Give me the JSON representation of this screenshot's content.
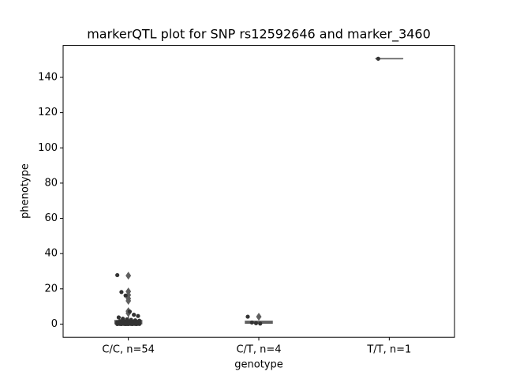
{
  "chart_data": {
    "type": "box",
    "title": "markerQTL plot for SNP rs12592646 and marker_3460",
    "x_label": "genotype",
    "y_label": "phenotype",
    "categories": [
      "C/C, n=54",
      "C/T, n=4",
      "T/T, n=1"
    ],
    "ylim": [
      -7.5,
      158.1
    ],
    "yticks": [
      0,
      20,
      40,
      60,
      80,
      100,
      120,
      140
    ],
    "box_color": "#5f5f5f",
    "point_color": "#333333",
    "boxes": [
      {
        "whisker_low": 0,
        "q1": 0.2,
        "median": 0.8,
        "q3": 2.0,
        "whisker_high": 4.5,
        "fliers": [
          27.5,
          18.5,
          16.5,
          14.5,
          13.2,
          7.3,
          6.2
        ]
      },
      {
        "whisker_low": 0.3,
        "q1": 0.5,
        "median": 0.8,
        "q3": 1.6,
        "whisker_high": 1.6,
        "fliers": [
          4.2
        ]
      },
      {
        "whisker_low": 150.6,
        "q1": 150.6,
        "median": 150.6,
        "q3": 150.6,
        "whisker_high": 150.6,
        "fliers": []
      }
    ],
    "points": [
      [
        27.8,
        18.2,
        16.2,
        7.1,
        5.3,
        4.6,
        3.8,
        3.1,
        2.7,
        2.4,
        2.1,
        1.9,
        1.7,
        1.5,
        1.4,
        1.3,
        1.2,
        1.1,
        1.0,
        0.9,
        0.9,
        0.8,
        0.8,
        0.7,
        0.7,
        0.6,
        0.6,
        0.5,
        0.5,
        0.5,
        0.4,
        0.4,
        0.4,
        0.3,
        0.3,
        0.3,
        0.3,
        0.2,
        0.2,
        0.2,
        0.2,
        0.2,
        0.1,
        0.1,
        0.1,
        0.1,
        0.1,
        0.1,
        0.0,
        0.0,
        0.0,
        0.0,
        0.0,
        0.0
      ],
      [
        4.2,
        0.9,
        0.5,
        0.3
      ],
      [
        150.6
      ]
    ]
  }
}
